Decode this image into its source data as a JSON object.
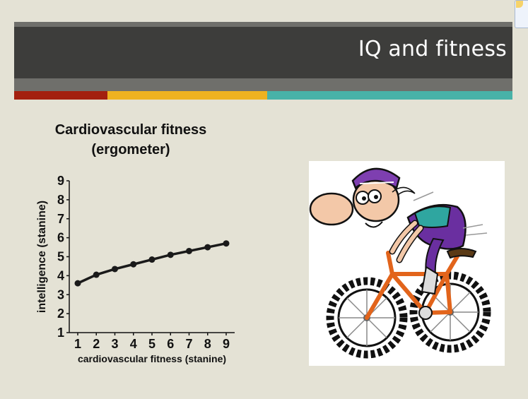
{
  "slide": {
    "title": "IQ and fitness",
    "accent_colors": {
      "red": "#a3200f",
      "yellow": "#eeb220",
      "teal": "#48b2a8"
    }
  },
  "chart_title": {
    "line1": "Cardiovascular fitness",
    "line2": "(ergometer)"
  },
  "chart_data": {
    "type": "line",
    "title": "Cardiovascular fitness (ergometer)",
    "xlabel": "cardiovascular fitness (stanine)",
    "ylabel": "intelligence (stanine)",
    "x": [
      1,
      2,
      3,
      4,
      5,
      6,
      7,
      8,
      9
    ],
    "series": [
      {
        "values": [
          3.6,
          4.05,
          4.35,
          4.6,
          4.85,
          5.1,
          5.3,
          5.5,
          5.7
        ]
      }
    ],
    "xlim": [
      1,
      9
    ],
    "ylim": [
      1,
      9
    ],
    "xticks": [
      "1",
      "2",
      "3",
      "4",
      "5",
      "6",
      "7",
      "8",
      "9"
    ],
    "yticks": [
      "1",
      "2",
      "3",
      "4",
      "5",
      "6",
      "7",
      "8",
      "9"
    ],
    "grid": false,
    "marker": "circle",
    "line_color": "#1a1a1a"
  },
  "illustration": {
    "icon": "cartoon-cyclist-icon"
  }
}
